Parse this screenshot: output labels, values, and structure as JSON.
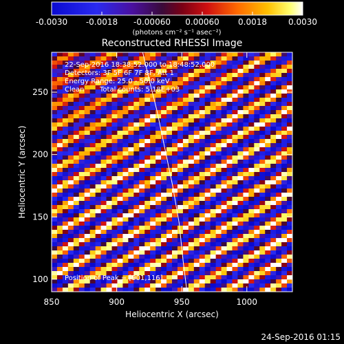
{
  "title": "Reconstructed RHESSI Image",
  "colorbar": {
    "ticks": [
      "-0.0030",
      "-0.0018",
      "-0.00060",
      "0.00060",
      "0.0018",
      "0.0030"
    ],
    "tick_values": [
      -0.003,
      -0.0018,
      -0.0006,
      0.0006,
      0.0018,
      0.003
    ],
    "range": [
      -0.003,
      0.003
    ],
    "colormap": "rainbow-like (blue-purple-red-orange-yellow-white)",
    "units_label": "(photons cm⁻² s⁻¹ asec⁻²)"
  },
  "info": {
    "line1": "22-Sep-2016 18:38:52.000 to 18:48:52.000",
    "line2": "Detectors: 3F 5F 6F 7F 8F, Att 1",
    "line3": "Energy Range: 25.0 - 50.0 keV",
    "line4_left": "Clean",
    "line4_right": "Total counts: 5.18E+03",
    "peak": "Position of Peak = [901,116]"
  },
  "xlabel": "Heliocentric X (arcsec)",
  "ylabel": "Heliocentric Y (arcsec)",
  "timestamp": "24-Sep-2016 01:15",
  "chart_data": {
    "type": "heatmap",
    "title": "Reconstructed RHESSI Image",
    "xlabel": "Heliocentric X (arcsec)",
    "ylabel": "Heliocentric Y (arcsec)",
    "xlim": [
      850,
      1035
    ],
    "ylim": [
      90,
      282
    ],
    "x_ticks": [
      850,
      900,
      950,
      1000
    ],
    "y_ticks": [
      100,
      150,
      200,
      250
    ],
    "x_tick_labels": [
      "850",
      "900",
      "950",
      "1000"
    ],
    "y_tick_labels": [
      "100",
      "150",
      "200",
      "250"
    ],
    "value_range": [
      -0.003,
      0.003
    ],
    "peak_position": [
      901,
      116
    ],
    "limb_curve": {
      "x": [
        920,
        925,
        931,
        937,
        943,
        948,
        951,
        954
      ],
      "y": [
        282,
        260,
        235,
        205,
        175,
        145,
        115,
        90
      ]
    },
    "pattern": {
      "orientation": "diagonal stripes rising to the right",
      "stripe_slope": 0.55,
      "stripe_period": 17
    }
  }
}
